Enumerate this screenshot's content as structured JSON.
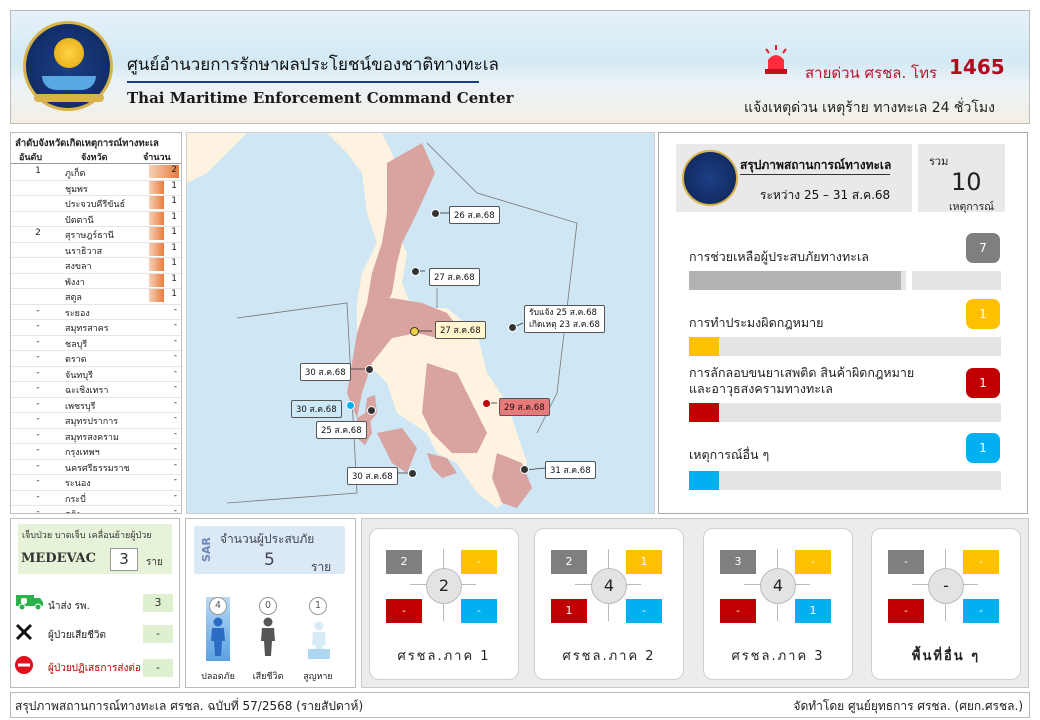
{
  "header": {
    "title_th": "ศูนย์อำนวยการรักษาผลประโยชน์ของชาติทางทะเล",
    "title_en": "Thai Maritime Enforcement Command Center",
    "hotline_label": "สายด่วน ศรชล. โทร",
    "hotline_number": "1465",
    "hotline_sub": "แจ้งเหตุด่วน เหตุร้าย ทางทะเล 24 ชั่วโมง"
  },
  "province_table": {
    "title": "ลำดับจังหวัดเกิดเหตุการณ์ทางทะเล",
    "headers": [
      "อันดับ",
      "จังหวัด",
      "จำนวน"
    ],
    "rows": [
      {
        "rank": "1",
        "name": "ภูเก็ต",
        "count": "2",
        "value": 2
      },
      {
        "rank": "",
        "name": "ชุมพร",
        "count": "1",
        "value": 1
      },
      {
        "rank": "",
        "name": "ประจวบคีรีขันธ์",
        "count": "1",
        "value": 1
      },
      {
        "rank": "",
        "name": "ปัตตานี",
        "count": "1",
        "value": 1
      },
      {
        "rank": "2",
        "name": "สุราษฎร์ธานี",
        "count": "1",
        "value": 1
      },
      {
        "rank": "",
        "name": "นราธิวาส",
        "count": "1",
        "value": 1
      },
      {
        "rank": "",
        "name": "สงขลา",
        "count": "1",
        "value": 1
      },
      {
        "rank": "",
        "name": "พังงา",
        "count": "1",
        "value": 1
      },
      {
        "rank": "",
        "name": "สตูล",
        "count": "1",
        "value": 1
      },
      {
        "rank": "-",
        "name": "ระยอง",
        "count": "-",
        "value": 0
      },
      {
        "rank": "-",
        "name": "สมุทรสาคร",
        "count": "-",
        "value": 0
      },
      {
        "rank": "-",
        "name": "ชลบุรี",
        "count": "-",
        "value": 0
      },
      {
        "rank": "-",
        "name": "ตราด",
        "count": "-",
        "value": 0
      },
      {
        "rank": "-",
        "name": "จันทบุรี",
        "count": "-",
        "value": 0
      },
      {
        "rank": "-",
        "name": "ฉะเชิงเทรา",
        "count": "-",
        "value": 0
      },
      {
        "rank": "-",
        "name": "เพชรบุรี",
        "count": "-",
        "value": 0
      },
      {
        "rank": "-",
        "name": "สมุทรปราการ",
        "count": "-",
        "value": 0
      },
      {
        "rank": "-",
        "name": "สมุทรสงคราม",
        "count": "-",
        "value": 0
      },
      {
        "rank": "-",
        "name": "กรุงเทพฯ",
        "count": "-",
        "value": 0
      },
      {
        "rank": "-",
        "name": "นครศรีธรรมราช",
        "count": "-",
        "value": 0
      },
      {
        "rank": "-",
        "name": "ระนอง",
        "count": "-",
        "value": 0
      },
      {
        "rank": "-",
        "name": "กระบี่",
        "count": "-",
        "value": 0
      },
      {
        "rank": "-",
        "name": "ตรัง",
        "count": "-",
        "value": 0
      }
    ]
  },
  "map_labels": {
    "l1": "26 ส.ค.68",
    "l2": "27 ส.ค.68",
    "l3": "27 ส.ค.68",
    "l4a": "รับแจ้ง 25 ส.ค.68",
    "l4b": "เกิดเหตุ 23 ส.ค.68",
    "l5": "30 ส.ค.68",
    "l6": "30 ส.ค.68",
    "l7": "25 ส.ค.68",
    "l8": "29 ส.ค.68",
    "l9": "30 ส.ค.68",
    "l10": "31 ส.ค.68"
  },
  "summary": {
    "title": "สรุปภาพสถานการณ์ทางทะเล",
    "range": "ระหว่าง 25 – 31 ส.ค.68",
    "total_label": "รวม",
    "total": "10",
    "total_unit": "เหตุการณ์",
    "categories": [
      {
        "label": "การช่วยเหลือผู้ประสบภัยทางทะเล",
        "count": "7",
        "color": "#7f7f7f",
        "fill": "#b3b3b3",
        "value": 7
      },
      {
        "label": "การทำประมงผิดกฎหมาย",
        "count": "1",
        "color": "#ffc000",
        "fill": "#ffc000",
        "value": 1
      },
      {
        "label1": "การลักลอบขนยาเสพติด สินค้าผิดกฎหมาย",
        "label2": "และอาวุธสงครามทางทะเล",
        "count": "1",
        "color": "#c00000",
        "fill": "#c00000",
        "value": 1
      },
      {
        "label": "เหตุการณ์อื่น ๆ",
        "count": "1",
        "color": "#00b0f0",
        "fill": "#00b0f0",
        "value": 1
      }
    ]
  },
  "medevac": {
    "sub": "เจ็บป่วย บาดเจ็บ เคลื่อนย้ายผู้ป่วย",
    "name": "MEDEVAC",
    "count": "3",
    "unit": "ราย",
    "rows": [
      {
        "label": "นำส่ง รพ.",
        "value": "3"
      },
      {
        "label": "ผู้ป่วยเสียชีวิต",
        "value": "-"
      },
      {
        "label": "ผู้ป่วยปฏิเสธการส่งต่อ",
        "value": "-"
      }
    ]
  },
  "sar": {
    "tag": "SAR",
    "title": "จำนวนผู้ประสบภัย",
    "count": "5",
    "unit": "ราย",
    "cols": [
      {
        "value": "4",
        "label": "ปลอดภัย"
      },
      {
        "value": "0",
        "label": "เสียชีวิต"
      },
      {
        "value": "1",
        "label": "สูญหาย"
      }
    ]
  },
  "regions": [
    {
      "name": "ศรชล.ภาค 1",
      "center": "2",
      "gray": "2",
      "yellow": "-",
      "red": "-",
      "blue": "-"
    },
    {
      "name": "ศรชล.ภาค 2",
      "center": "4",
      "gray": "2",
      "yellow": "1",
      "red": "1",
      "blue": "-"
    },
    {
      "name": "ศรชล.ภาค 3",
      "center": "4",
      "gray": "3",
      "yellow": "-",
      "red": "-",
      "blue": "1"
    },
    {
      "name": "พื้นที่อื่น ๆ",
      "center": "-",
      "gray": "-",
      "yellow": "-",
      "red": "-",
      "blue": "-"
    }
  ],
  "footer": {
    "left": "สรุปภาพสถานการณ์ทางทะเล ศรชล. ฉบับที่ 57/2568 (รายสัปดาห์)",
    "right": "จัดทำโดย ศูนย์ยุทธการ ศรชล. (ศยก.ศรชล.)"
  },
  "colors": {
    "gray": "#7f7f7f",
    "yellow": "#ffc000",
    "red": "#c00000",
    "blue": "#00b0f0",
    "navy": "#1c3e86"
  }
}
